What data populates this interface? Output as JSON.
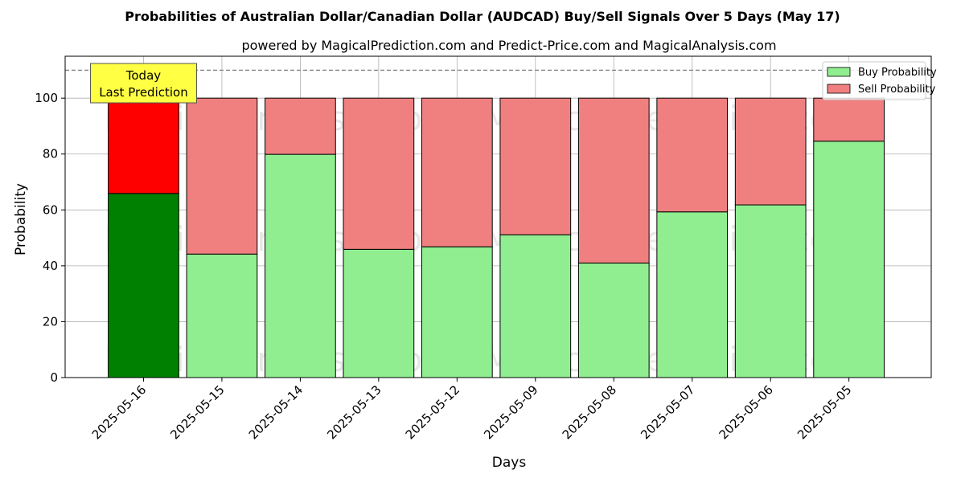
{
  "chart_data": {
    "type": "bar",
    "stacked": true,
    "title": "Probabilities of Australian Dollar/Canadian Dollar (AUDCAD) Buy/Sell Signals Over 5 Days (May 17)",
    "subtitle": "powered by MagicalPrediction.com and Predict-Price.com and MagicalAnalysis.com",
    "xlabel": "Days",
    "ylabel": "Probability",
    "ylim": [
      0,
      115
    ],
    "yticks": [
      0,
      20,
      40,
      60,
      80,
      100
    ],
    "grid": true,
    "legend_position": "top-right",
    "reference_line": 110,
    "categories": [
      "2025-05-16",
      "2025-05-15",
      "2025-05-14",
      "2025-05-13",
      "2025-05-12",
      "2025-05-09",
      "2025-05-08",
      "2025-05-07",
      "2025-05-06",
      "2025-05-05"
    ],
    "series": [
      {
        "name": "Buy Probability",
        "color": "#90ee90",
        "highlight_color": "#008000",
        "values": [
          65.9,
          44.2,
          79.9,
          45.9,
          46.8,
          51.1,
          41.0,
          59.3,
          61.8,
          84.6
        ]
      },
      {
        "name": "Sell Probability",
        "color": "#f08080",
        "highlight_color": "#ff0000",
        "values": [
          34.1,
          55.8,
          20.1,
          54.1,
          53.2,
          48.9,
          59.0,
          40.7,
          38.2,
          15.4
        ]
      }
    ],
    "annotation": {
      "lines": [
        "Today",
        "Last Prediction"
      ],
      "category_index": 0,
      "bg_color": "#ffff44"
    },
    "watermarks": [
      "MagicalAnalysis.com",
      "MagicalPrediction.com",
      "MagicalAnalysis.com",
      "MagicalPrediction.com",
      "MagicalAnalysis.com",
      "MagicalPrediction.com"
    ]
  }
}
